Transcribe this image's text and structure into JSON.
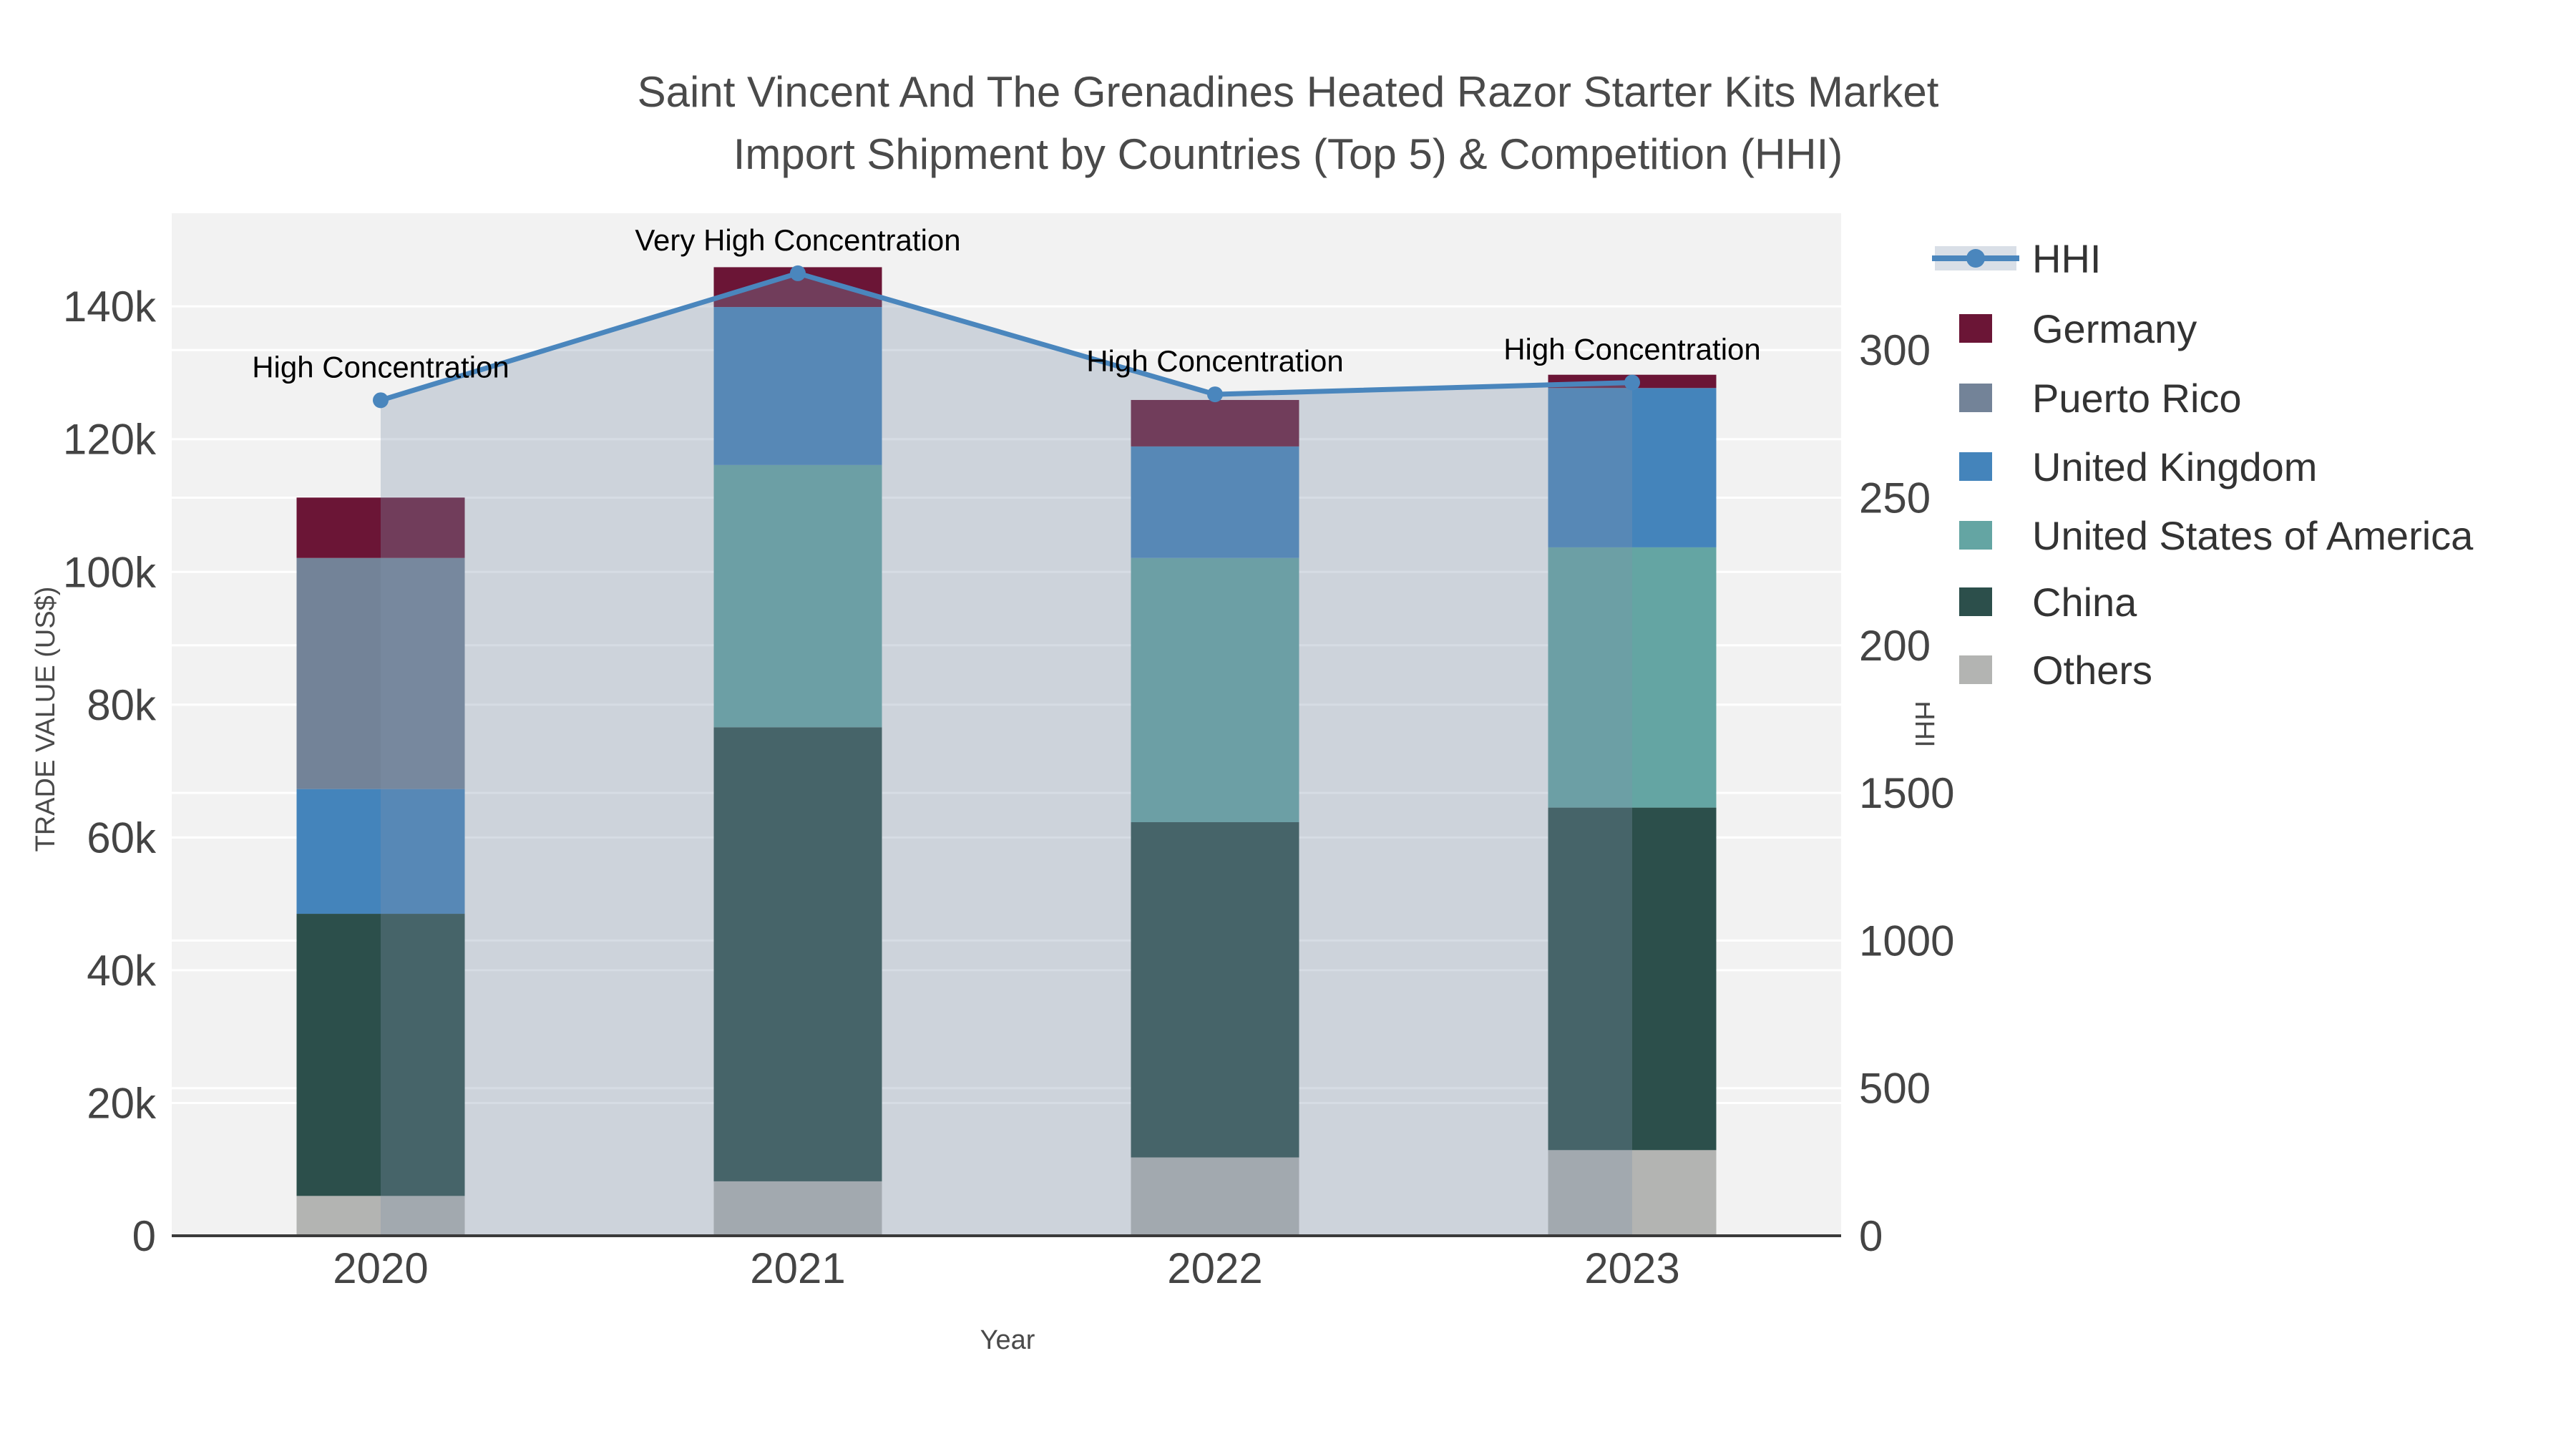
{
  "chart_data": {
    "type": "bar",
    "title": {
      "line1": "Saint Vincent And The Grenadines Heated Razor Starter Kits Market",
      "line2": "Import Shipment by Countries (Top 5) & Competition (HHI)"
    },
    "categories": [
      "2020",
      "2021",
      "2022",
      "2023"
    ],
    "stacked_series": [
      {
        "name": "Others",
        "color": "#B3B4B2",
        "values": [
          6000,
          8200,
          11800,
          12900
        ]
      },
      {
        "name": "China",
        "color": "#2C4F4B",
        "values": [
          42500,
          68400,
          50500,
          51600
        ]
      },
      {
        "name": "United States of America",
        "color": "#64A5A3",
        "values": [
          0,
          39500,
          39800,
          39200
        ]
      },
      {
        "name": "United Kingdom",
        "color": "#4484BB",
        "values": [
          18800,
          23800,
          16800,
          24000
        ]
      },
      {
        "name": "Puerto Rico",
        "color": "#738398",
        "values": [
          34800,
          0,
          0,
          0
        ]
      },
      {
        "name": "Germany",
        "color": "#6B1536",
        "values": [
          9100,
          6000,
          7000,
          2000
        ]
      }
    ],
    "totals": [
      111200,
      145900,
      125900,
      129700
    ],
    "line_series": {
      "name": "HHI",
      "color": "#4A86BD",
      "fill_color": "rgba(126,147,172,0.32)",
      "values": [
        2830,
        3260,
        2850,
        2890
      ]
    },
    "annotations": [
      "High Concentration",
      "Very High Concentration",
      "High Concentration",
      "High Concentration"
    ],
    "axes": {
      "left": {
        "title": "TRADE VALUE (US$)",
        "ticks": [
          "0",
          "20k",
          "40k",
          "60k",
          "80k",
          "100k",
          "120k",
          "140k"
        ],
        "range": [
          0,
          154000
        ]
      },
      "right": {
        "title": "HHI",
        "ticks": [
          "0",
          "500",
          "1000",
          "1500",
          "2000",
          "2500",
          "3000"
        ],
        "range": [
          0,
          3460
        ]
      },
      "x": {
        "title": "Year"
      }
    },
    "legend": {
      "items": [
        {
          "label": "HHI",
          "type": "line",
          "color": "#4A86BD"
        },
        {
          "label": "Germany",
          "type": "swatch",
          "color": "#6B1536"
        },
        {
          "label": "Puerto Rico",
          "type": "swatch",
          "color": "#738398"
        },
        {
          "label": "United Kingdom",
          "type": "swatch",
          "color": "#4484BB"
        },
        {
          "label": "United States of America",
          "type": "swatch",
          "color": "#64A5A3"
        },
        {
          "label": "China",
          "type": "swatch",
          "color": "#2C4F4B"
        },
        {
          "label": "Others",
          "type": "swatch",
          "color": "#B3B4B2"
        }
      ]
    },
    "plot_background": "#F2F2F2",
    "gridline_color": "#FFFFFF",
    "axisline_color": "#3A3A3A"
  }
}
